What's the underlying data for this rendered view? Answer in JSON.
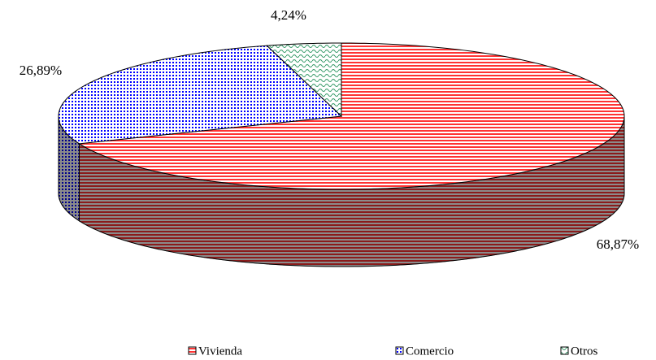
{
  "chart_data": {
    "type": "pie",
    "categories": [
      "Vivienda",
      "Comercio",
      "Otros"
    ],
    "values": [
      68.87,
      26.89,
      4.24
    ],
    "value_labels": [
      "68,87%",
      "26,89%",
      "4,24%"
    ],
    "colors": [
      "#ff3333",
      "#0000ff",
      "#339966"
    ]
  }
}
